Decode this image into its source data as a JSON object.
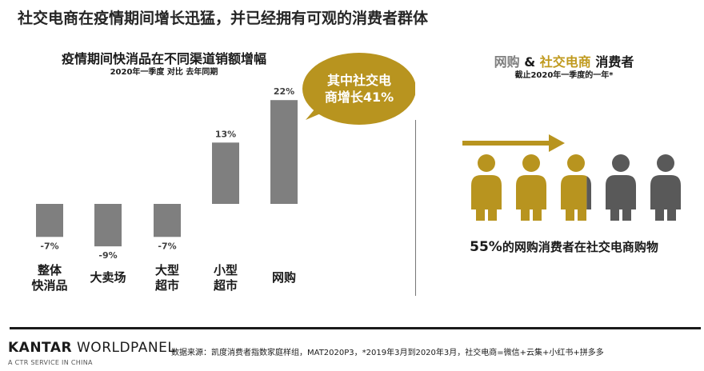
{
  "slide": {
    "title": "社交电商在疫情期间增长迅猛，并已经拥有可观的消费者群体"
  },
  "chart_data": {
    "type": "bar",
    "title": "疫情期间快消品在不同渠道销额增幅",
    "subtitle": "2020年一季度 对比 去年同期",
    "categories": [
      "整体\n快消品",
      "大卖场",
      "大型\n超市",
      "小型\n超市",
      "网购"
    ],
    "values": [
      -7,
      -9,
      -7,
      13,
      22
    ],
    "data_labels": [
      "-7%",
      "-9%",
      "-7%",
      "13%",
      "22%"
    ],
    "bar_color": "#7f7f7f",
    "callout": {
      "text_line1": "其中社交电",
      "text_line2": "商增长41%",
      "color": "#b8941f"
    }
  },
  "right_panel": {
    "title_part1": "网购",
    "title_amp": " & ",
    "title_part2": "社交电商",
    "title_part3": " 消费者",
    "subtitle": "截止2020年一季度的一年*",
    "stat_value": "55%",
    "stat_text": "的网购消费者在社交电商购物",
    "colors": {
      "gold": "#b8941f",
      "gray": "#595959",
      "title_gray": "#7f7f7f",
      "title_gold": "#c09a1e"
    },
    "people_gold_fraction": 0.55,
    "people_count": 5
  },
  "footer": {
    "brand_bold": "KANTAR",
    "brand_rest": " WORLDPANEL",
    "brand_sub": "A CTR SERVICE IN CHINA",
    "source": "数据来源：凯度消费者指数家庭样组，MAT2020P3，*2019年3月到2020年3月，社交电商=微信+云集+小红书+拼多多"
  }
}
